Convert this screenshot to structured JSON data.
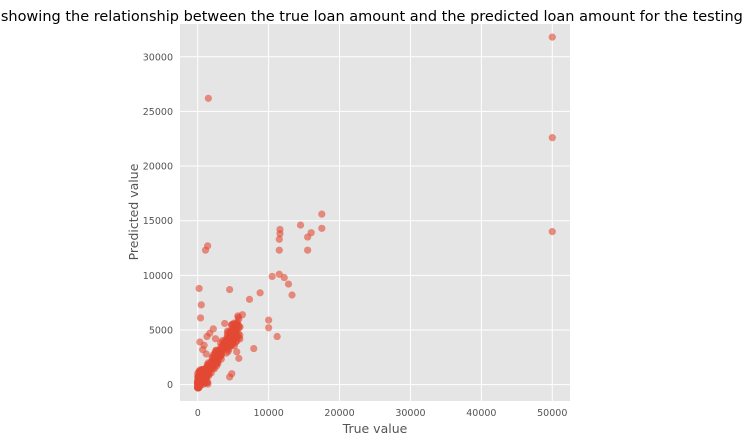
{
  "chart_data": {
    "type": "scatter",
    "title": "Graph showing the relationship between the true loan amount and the predicted loan amount for the testing dataset",
    "xlabel": "True value",
    "ylabel": "Predicted value",
    "xlim": [
      -2500,
      52500
    ],
    "ylim": [
      -1500,
      33000
    ],
    "xticks": [
      0,
      10000,
      20000,
      30000,
      40000,
      50000
    ],
    "yticks": [
      0,
      5000,
      10000,
      15000,
      20000,
      25000,
      30000
    ],
    "xtick_labels": [
      "0",
      "10000",
      "20000",
      "30000",
      "40000",
      "50000"
    ],
    "ytick_labels": [
      "0",
      "5000",
      "10000",
      "15000",
      "20000",
      "25000",
      "30000"
    ],
    "grid": true,
    "colors": {
      "background": "#E5E5E5",
      "point": "#E24A33",
      "grid": "#FFFFFF"
    },
    "series": [
      {
        "points": [
          [
            50000,
            31800
          ],
          [
            50000,
            22600
          ],
          [
            50000,
            14000
          ],
          [
            1500,
            26200
          ],
          [
            17500,
            15600
          ],
          [
            17500,
            14300
          ],
          [
            11600,
            14200
          ],
          [
            11600,
            13800
          ],
          [
            11500,
            13300
          ],
          [
            11500,
            12300
          ],
          [
            14500,
            14600
          ],
          [
            16000,
            13900
          ],
          [
            15500,
            13500
          ],
          [
            15500,
            12300
          ],
          [
            1400,
            12700
          ],
          [
            1100,
            12300
          ],
          [
            10500,
            9900
          ],
          [
            11500,
            10100
          ],
          [
            12200,
            9800
          ],
          [
            12800,
            9200
          ],
          [
            13300,
            8200
          ],
          [
            200,
            8800
          ],
          [
            4500,
            8700
          ],
          [
            8800,
            8400
          ],
          [
            7300,
            7800
          ],
          [
            500,
            7300
          ],
          [
            6300,
            6400
          ],
          [
            400,
            6100
          ],
          [
            5800,
            6000
          ],
          [
            10000,
            5900
          ],
          [
            10000,
            5200
          ],
          [
            11200,
            4400
          ],
          [
            7900,
            3300
          ],
          [
            5500,
            3000
          ],
          [
            5800,
            2400
          ],
          [
            4500,
            700
          ],
          [
            4800,
            1000
          ],
          [
            300,
            3900
          ],
          [
            900,
            3600
          ],
          [
            1300,
            4400
          ],
          [
            1700,
            4700
          ],
          [
            2200,
            5100
          ],
          [
            3800,
            5600
          ],
          [
            700,
            3200
          ],
          [
            1200,
            2800
          ],
          [
            2500,
            4200
          ]
        ]
      }
    ]
  }
}
